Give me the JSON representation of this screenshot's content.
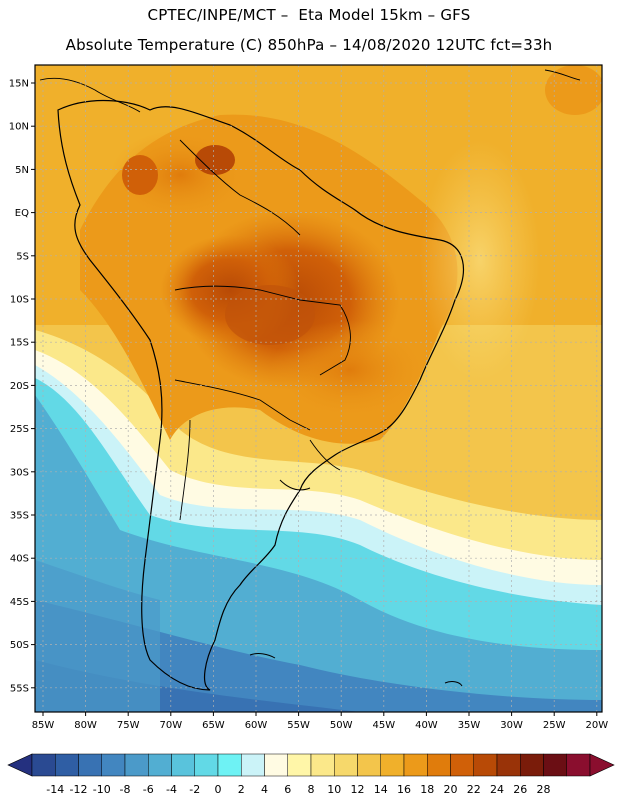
{
  "title_line1": "CPTEC/INPE/MCT –  Eta Model 15km – GFS",
  "title_line2": "Absolute Temperature (C) 850hPa – 14/08/2020 12UTC fct=33h",
  "map": {
    "lat_labels": [
      "15N",
      "10N",
      "5N",
      "EQ",
      "5S",
      "10S",
      "15S",
      "20S",
      "25S",
      "30S",
      "35S",
      "40S",
      "45S",
      "50S",
      "55S"
    ],
    "lon_labels": [
      "85W",
      "80W",
      "75W",
      "70W",
      "65W",
      "60W",
      "55W",
      "50W",
      "45W",
      "40W",
      "35W",
      "30W",
      "25W",
      "20W"
    ],
    "gridlines": "dotted"
  },
  "colorbar": {
    "labels": [
      "-14",
      "-12",
      "-10",
      "-8",
      "-6",
      "-4",
      "-2",
      "0",
      "2",
      "4",
      "6",
      "8",
      "10",
      "12",
      "14",
      "16",
      "18",
      "20",
      "22",
      "24",
      "26",
      "28"
    ],
    "colors": [
      "#2a4a92",
      "#2f5ea4",
      "#3872b3",
      "#4286c0",
      "#4b9ac9",
      "#52aed2",
      "#59c3dc",
      "#62d9e6",
      "#6ef2f4",
      "#cbf3f8",
      "#fffbe3",
      "#fff6a8",
      "#fbe88a",
      "#f6d86b",
      "#f3c54b",
      "#f0b02b",
      "#ec9a1a",
      "#e07c0c",
      "#d06008",
      "#b84a06",
      "#993308",
      "#7a1c0a",
      "#6b0e14",
      "#8a0e2e"
    ],
    "undershoot_color": "#24307f",
    "overshoot_color": "#8a0e2e"
  }
}
